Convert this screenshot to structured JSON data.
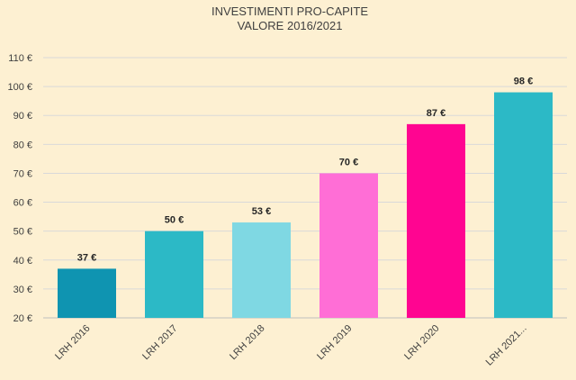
{
  "chart_data": {
    "type": "bar",
    "title_lines": [
      "INVESTIMENTI PRO-CAPITE",
      "VALORE 2016/2021"
    ],
    "categories": [
      "LRH 2016",
      "LRH 2017",
      "LRH 2018",
      "LRH 2019",
      "LRH 2020",
      "LRH 2021..."
    ],
    "values": [
      37,
      50,
      53,
      70,
      87,
      98
    ],
    "value_labels": [
      "37 €",
      "50 €",
      "53 €",
      "70 €",
      "87 €",
      "98 €"
    ],
    "bar_colors": [
      "#0f94b1",
      "#2cb9c6",
      "#7fd8e3",
      "#ff6ed6",
      "#ff0591",
      "#2cb9c6"
    ],
    "ylim": [
      20,
      110
    ],
    "yticks": [
      20,
      30,
      40,
      50,
      60,
      70,
      80,
      90,
      100,
      110
    ],
    "ytick_labels": [
      "20 €",
      "30 €",
      "40 €",
      "50 €",
      "60 €",
      "70 €",
      "80 €",
      "90 €",
      "100 €",
      "110 €"
    ],
    "xlabel": "",
    "ylabel": "",
    "grid": true,
    "legend": false
  }
}
